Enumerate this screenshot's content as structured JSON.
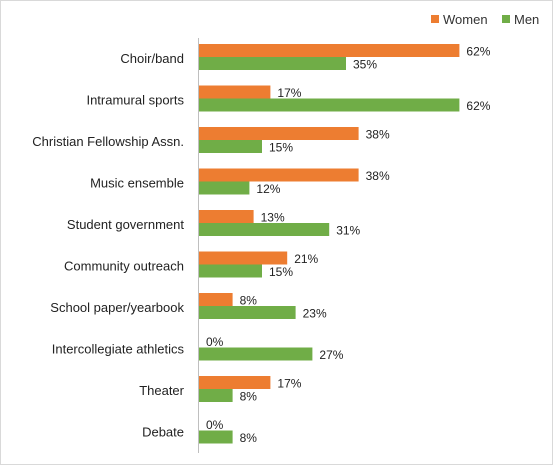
{
  "chart_data": {
    "type": "bar",
    "orientation": "horizontal",
    "categories": [
      "Choir/band",
      "Intramural sports",
      "Christian Fellowship Assn.",
      "Music ensemble",
      "Student government",
      "Community outreach",
      "School paper/yearbook",
      "Intercollegiate athletics",
      "Theater",
      "Debate"
    ],
    "series": [
      {
        "name": "Women",
        "color": "#ED7D31",
        "values": [
          62,
          17,
          38,
          38,
          13,
          21,
          8,
          0,
          17,
          0
        ]
      },
      {
        "name": "Men",
        "color": "#70AD47",
        "values": [
          35,
          62,
          15,
          12,
          31,
          15,
          23,
          27,
          8,
          8
        ]
      }
    ],
    "value_format": "{v}%",
    "xlim": [
      0,
      100
    ],
    "title": "",
    "xlabel": "",
    "ylabel": "",
    "grid": false,
    "legend": "top-right"
  }
}
